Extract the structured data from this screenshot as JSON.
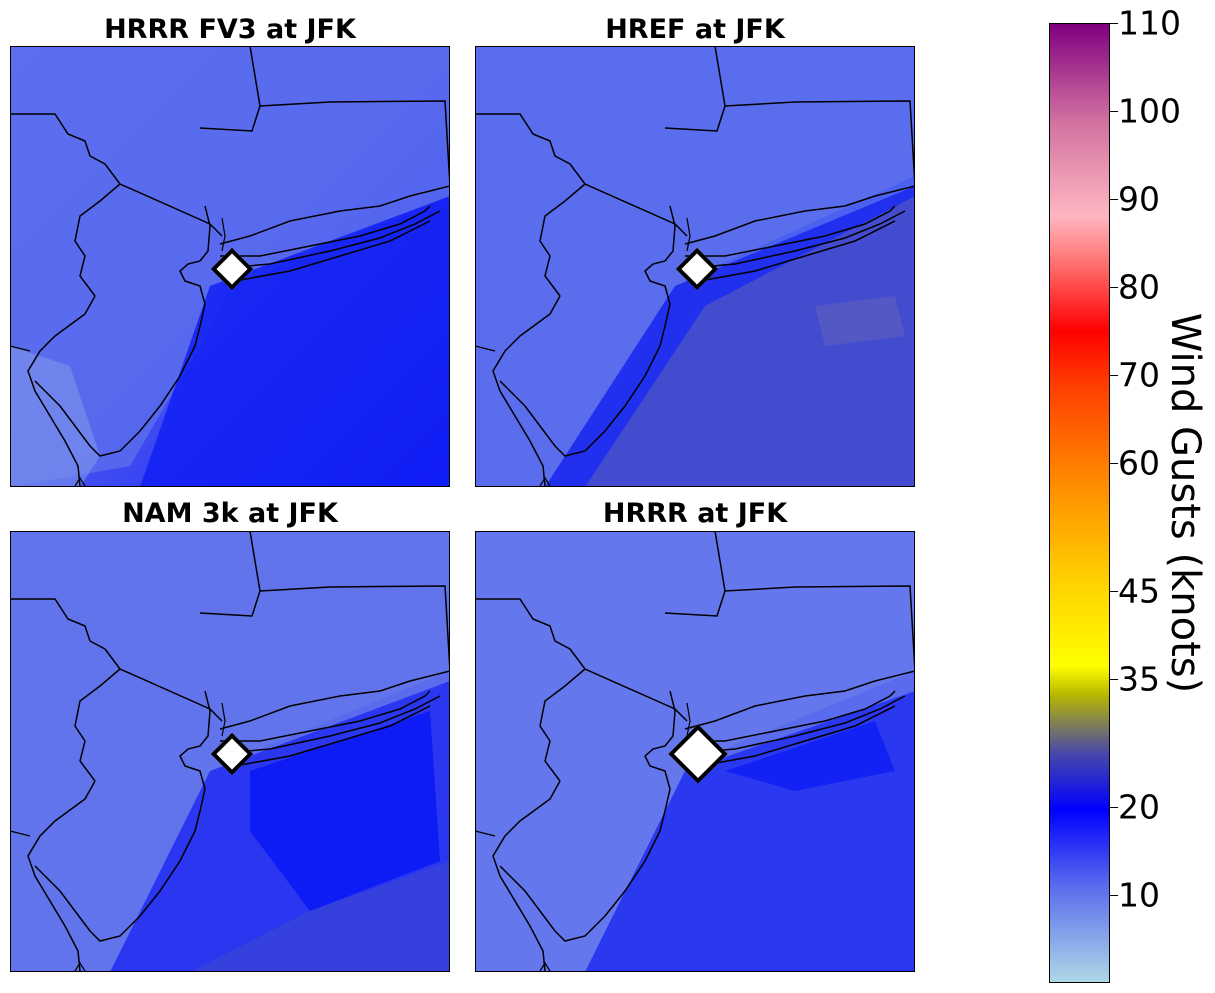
{
  "panels": [
    {
      "title": "HRRR FV3 at JFK"
    },
    {
      "title": "HREF at JFK"
    },
    {
      "title": "NAM 3k at JFK"
    },
    {
      "title": "HRRR at JFK"
    }
  ],
  "station_marker": "diamond-icon",
  "colorbar": {
    "label": "Wind Gusts (knots)",
    "ticks": [
      "110",
      "100",
      "90",
      "80",
      "70",
      "60",
      "45",
      "35",
      "20",
      "10"
    ],
    "tick_values": [
      110,
      100,
      90,
      80,
      70,
      60,
      45,
      35,
      20,
      10
    ],
    "min": 0,
    "max": 110,
    "colors": {
      "low": "#add8e6",
      "blue": "#0000ff",
      "olive": "#b8b800",
      "yellow": "#ffff00",
      "orange": "#ff8c00",
      "red": "#ff0000",
      "pink": "#ffb6c1",
      "purple": "#800080"
    }
  }
}
